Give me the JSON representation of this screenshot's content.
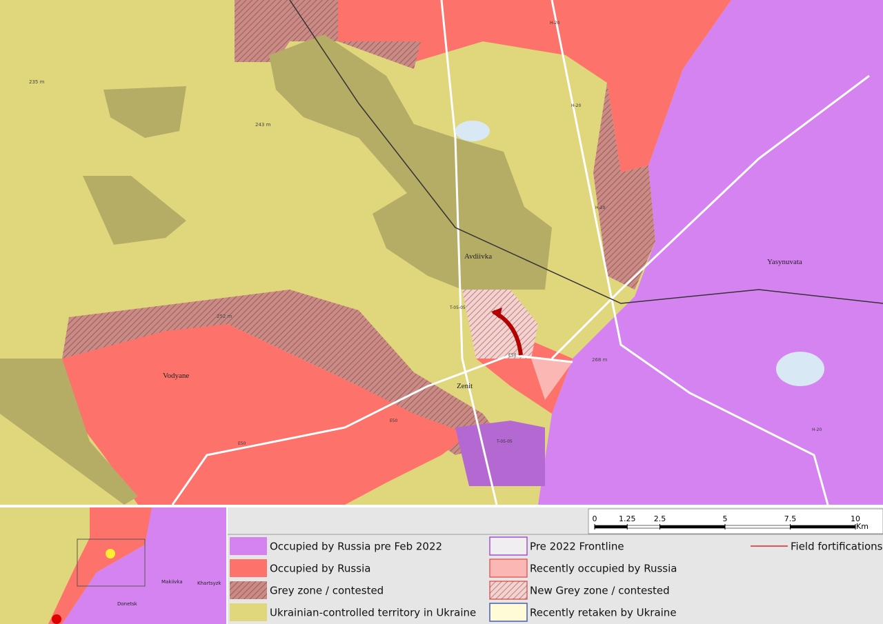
{
  "map": {
    "places": [
      "Avdiivka",
      "Vodyane",
      "Zenit",
      "Yasynuvata"
    ],
    "roads": [
      "H-20",
      "H-20",
      "H-20",
      "E50",
      "E50",
      "E50",
      "T-05-05",
      "T-05-05",
      "H-20"
    ],
    "elevations": [
      "235 m",
      "243 m",
      "252 m",
      "268 m"
    ]
  },
  "inset": {
    "labels": [
      "Donetsk",
      "Makiivka",
      "Khartsyzk"
    ]
  },
  "scale_bar": {
    "ticks": [
      0,
      1.25,
      2.5,
      5,
      7.5,
      10
    ],
    "unit": "Km"
  },
  "legend": {
    "items": [
      {
        "label": "Occupied by Russia pre Feb 2022",
        "color": "#d683f2",
        "hatch": false
      },
      {
        "label": "Occupied by Russia",
        "color": "#fd726a",
        "hatch": false
      },
      {
        "label": "Grey zone / contested",
        "color": "#c98b86",
        "hatch": true
      },
      {
        "label": "Ukrainian-controlled territory in Ukraine",
        "color": "#e0d67c",
        "hatch": false
      },
      {
        "label": "Pre 2022 Frontline",
        "color": "#f1eef2",
        "hatch": false
      },
      {
        "label": "Recently occupied by Russia",
        "color": "#fbb7b3",
        "hatch": false
      },
      {
        "label": "New Grey zone / contested",
        "color": "#f3d2cf",
        "hatch": true
      },
      {
        "label": "Recently retaken by Ukraine",
        "color": "#fffbd6",
        "hatch": false
      }
    ],
    "fortifications": "Field fortifications"
  }
}
